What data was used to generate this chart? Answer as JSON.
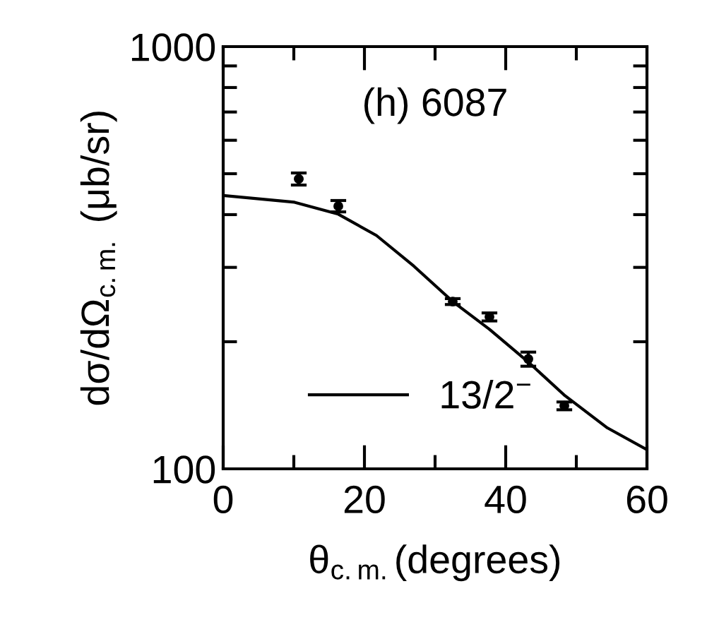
{
  "chart_data": {
    "type": "line",
    "xlabel": "θ$_{c.m.}$(degrees)",
    "ylabel": "dσ/dΩ$_{c.m.}$ (μb/sr)",
    "annotations": [
      "(h) 6087"
    ],
    "log": "y",
    "xlim": [
      0,
      60
    ],
    "ylim": [
      100,
      1000
    ],
    "xticks": [
      0,
      {
        "value": 10,
        "label": null
      },
      20,
      {
        "value": 30,
        "label": null
      },
      40,
      {
        "value": 50,
        "label": null
      },
      60
    ],
    "yticks": [
      100,
      {
        "value": 200,
        "label": null
      },
      {
        "value": 300,
        "label": null
      },
      {
        "value": 400,
        "label": null
      },
      {
        "value": 500,
        "label": null
      },
      {
        "value": 600,
        "label": null
      },
      {
        "value": 700,
        "label": null
      },
      {
        "value": 800,
        "label": null
      },
      {
        "value": 900,
        "label": null
      },
      1000
    ],
    "grid": false,
    "legend": "bottom left",
    "series": [
      {
        "type": "scatter",
        "color": "#000000",
        "marker": "circle",
        "x": [
          10.7,
          16.3,
          32.5,
          37.7,
          43.2,
          48.3
        ],
        "values": [
          486,
          419,
          249,
          229,
          182,
          141
        ],
        "errors": [
          16,
          13,
          4,
          5,
          7,
          3
        ]
      },
      {
        "name": "13/2$^{−}$",
        "color": "#000000",
        "line_style": "solid",
        "marker": "none",
        "x": [
          0,
          10.1,
          16.3,
          21.7,
          27,
          32.5,
          37.7,
          43.2,
          48.4,
          54.4,
          60
        ],
        "values": [
          444,
          428,
          401,
          357,
          302,
          249,
          214,
          179,
          149,
          125,
          111
        ]
      }
    ]
  }
}
